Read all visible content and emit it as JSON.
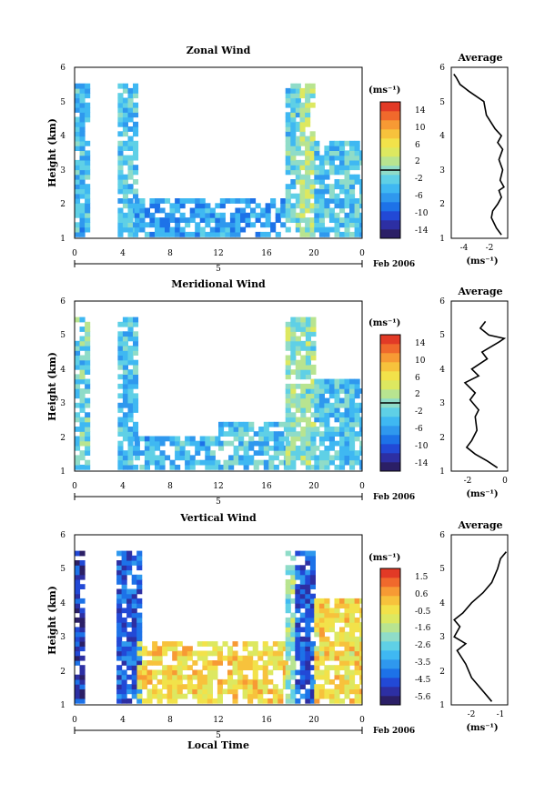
{
  "panels": [
    {
      "title": "Zonal Wind",
      "ylabel": "Height (km)",
      "yticks": [
        "1",
        "2",
        "3",
        "4",
        "5",
        "6"
      ],
      "xticks": [
        "0",
        "4",
        "8",
        "12",
        "16",
        "20",
        "0"
      ],
      "day_label": "5",
      "date_label": "Feb 2006",
      "colorbar": {
        "unit": "(ms⁻¹)",
        "labels": [
          "14",
          "10",
          "6",
          "2",
          "-2",
          "-6",
          "-10",
          "-14"
        ],
        "min": -16,
        "max": 16
      },
      "avg": {
        "title": "Average",
        "yticks": [
          "1",
          "2",
          "3",
          "4",
          "5",
          "6"
        ],
        "xticks": [
          "-4",
          "-2"
        ],
        "xlabel": "(ms⁻¹)",
        "xlim": [
          -5,
          -0.5
        ]
      }
    },
    {
      "title": "Meridional Wind",
      "ylabel": "Height (km)",
      "yticks": [
        "1",
        "2",
        "3",
        "4",
        "5",
        "6"
      ],
      "xticks": [
        "0",
        "4",
        "8",
        "12",
        "16",
        "20",
        "0"
      ],
      "day_label": "5",
      "date_label": "Feb 2006",
      "colorbar": {
        "unit": "(ms⁻¹)",
        "labels": [
          "14",
          "10",
          "6",
          "2",
          "-2",
          "-6",
          "-10",
          "-14"
        ],
        "min": -16,
        "max": 16
      },
      "avg": {
        "title": "Average",
        "yticks": [
          "1",
          "2",
          "3",
          "4",
          "5",
          "6"
        ],
        "xticks": [
          "-2",
          "0"
        ],
        "xlabel": "(ms⁻¹)",
        "xlim": [
          -3,
          0.3
        ]
      }
    },
    {
      "title": "Vertical Wind",
      "ylabel": "Height (km)",
      "yticks": [
        "1",
        "2",
        "3",
        "4",
        "5",
        "6"
      ],
      "xticks": [
        "0",
        "4",
        "8",
        "12",
        "16",
        "20",
        "0"
      ],
      "day_label": "5",
      "date_label": "Feb 2006",
      "xlabel": "Local Time",
      "colorbar": {
        "unit": "(ms⁻¹)",
        "labels": [
          "1.5",
          "0.6",
          "-0.5",
          "-1.6",
          "-2.6",
          "-3.5",
          "-4.5",
          "-5.6"
        ],
        "min": -6.1,
        "max": 2.0
      },
      "avg": {
        "title": "Average",
        "yticks": [
          "1",
          "2",
          "3",
          "4",
          "5",
          "6"
        ],
        "xticks": [
          "-2",
          "-1"
        ],
        "xlabel": "(ms⁻¹)",
        "xlim": [
          -2.7,
          -0.75
        ]
      }
    }
  ],
  "chart_data": [
    {
      "type": "heatmap",
      "title": "Zonal Wind",
      "xlabel": "",
      "ylabel": "Height (km)",
      "x_unit": "local time (h)",
      "xlim": [
        0,
        24
      ],
      "ylim": [
        1,
        6
      ],
      "colorbar_range": [
        -16,
        16
      ],
      "observation_blocks": [
        {
          "t_start": 0,
          "t_end": 1.2,
          "z_top": 5.4,
          "mean_value": -4
        },
        {
          "t_start": 3.6,
          "t_end": 5.0,
          "z_top": 5.4,
          "mean_value": -3
        },
        {
          "t_start": 5.0,
          "t_end": 17.6,
          "z_top": 2.1,
          "mean_value": -6
        },
        {
          "t_start": 17.6,
          "t_end": 18.8,
          "z_top": 5.4,
          "mean_value": -2
        },
        {
          "t_start": 18.8,
          "t_end": 20.0,
          "z_top": 5.4,
          "mean_value": 2
        },
        {
          "t_start": 20.0,
          "t_end": 24,
          "z_top": 3.8,
          "mean_value": -3
        }
      ]
    },
    {
      "type": "heatmap",
      "title": "Meridional Wind",
      "xlabel": "",
      "ylabel": "Height (km)",
      "x_unit": "local time (h)",
      "xlim": [
        0,
        24
      ],
      "ylim": [
        1,
        6
      ],
      "colorbar_range": [
        -16,
        16
      ],
      "observation_blocks": [
        {
          "t_start": 0,
          "t_end": 1.2,
          "z_top": 5.4,
          "mean_value": -2
        },
        {
          "t_start": 3.6,
          "t_end": 5.0,
          "z_top": 5.4,
          "mean_value": -4
        },
        {
          "t_start": 5.0,
          "t_end": 12.0,
          "z_top": 1.9,
          "mean_value": -4
        },
        {
          "t_start": 12.0,
          "t_end": 17.6,
          "z_top": 2.4,
          "mean_value": -3
        },
        {
          "t_start": 17.6,
          "t_end": 20.0,
          "z_top": 5.4,
          "mean_value": 0
        },
        {
          "t_start": 20.0,
          "t_end": 24,
          "z_top": 3.6,
          "mean_value": -3
        }
      ]
    },
    {
      "type": "heatmap",
      "title": "Vertical Wind",
      "xlabel": "Local Time",
      "ylabel": "Height (km)",
      "x_unit": "local time (h)",
      "xlim": [
        0,
        24
      ],
      "ylim": [
        1,
        6
      ],
      "colorbar_range": [
        -6.1,
        2.0
      ],
      "observation_blocks": [
        {
          "t_start": 0,
          "t_end": 0.8,
          "z_top": 5.5,
          "mean_value": -5.0
        },
        {
          "t_start": 3.5,
          "t_end": 5.2,
          "z_top": 5.5,
          "mean_value": -4.5
        },
        {
          "t_start": 5.2,
          "t_end": 17.6,
          "z_top": 2.8,
          "mean_value": -0.3
        },
        {
          "t_start": 17.6,
          "t_end": 18.4,
          "z_top": 5.5,
          "mean_value": -2.0
        },
        {
          "t_start": 18.4,
          "t_end": 20.0,
          "z_top": 5.5,
          "mean_value": -4.5
        },
        {
          "t_start": 20.0,
          "t_end": 24,
          "z_top": 4.0,
          "mean_value": -0.4
        }
      ]
    },
    {
      "type": "line",
      "title": "Average",
      "xlabel": "(ms⁻¹)",
      "ylabel": "",
      "xlim": [
        -5,
        -0.5
      ],
      "ylim": [
        1,
        6
      ],
      "series": [
        {
          "points": [
            [
              -1.0,
              1.1
            ],
            [
              -1.4,
              1.3
            ],
            [
              -1.8,
              1.6
            ],
            [
              -1.7,
              1.8
            ],
            [
              -1.3,
              2.0
            ],
            [
              -1.0,
              2.2
            ],
            [
              -1.2,
              2.4
            ],
            [
              -0.8,
              2.5
            ],
            [
              -1.1,
              2.7
            ],
            [
              -0.9,
              3.0
            ],
            [
              -1.2,
              3.3
            ],
            [
              -0.9,
              3.6
            ],
            [
              -1.3,
              3.8
            ],
            [
              -1.0,
              4.0
            ],
            [
              -1.5,
              4.2
            ],
            [
              -2.2,
              4.6
            ],
            [
              -2.4,
              5.0
            ],
            [
              -3.6,
              5.3
            ],
            [
              -4.3,
              5.5
            ],
            [
              -4.6,
              5.7
            ],
            [
              -4.8,
              5.8
            ]
          ]
        }
      ]
    },
    {
      "type": "line",
      "title": "Average",
      "xlabel": "(ms⁻¹)",
      "ylabel": "",
      "xlim": [
        -3,
        0.3
      ],
      "ylim": [
        1,
        6
      ],
      "series": [
        {
          "points": [
            [
              -0.3,
              1.1
            ],
            [
              -0.9,
              1.3
            ],
            [
              -1.6,
              1.5
            ],
            [
              -2.1,
              1.7
            ],
            [
              -1.8,
              1.9
            ],
            [
              -1.5,
              2.2
            ],
            [
              -1.6,
              2.6
            ],
            [
              -1.4,
              2.8
            ],
            [
              -1.9,
              3.1
            ],
            [
              -1.6,
              3.3
            ],
            [
              -2.2,
              3.6
            ],
            [
              -1.4,
              3.8
            ],
            [
              -1.8,
              4.0
            ],
            [
              -0.9,
              4.3
            ],
            [
              -1.2,
              4.5
            ],
            [
              -0.2,
              4.8
            ],
            [
              0.1,
              4.9
            ],
            [
              -0.8,
              5.0
            ],
            [
              -1.3,
              5.2
            ],
            [
              -1.0,
              5.4
            ]
          ]
        }
      ]
    },
    {
      "type": "line",
      "title": "Average",
      "xlabel": "(ms⁻¹)",
      "ylabel": "",
      "xlim": [
        -2.7,
        -0.75
      ],
      "ylim": [
        1,
        6
      ],
      "series": [
        {
          "points": [
            [
              -1.3,
              1.1
            ],
            [
              -1.5,
              1.3
            ],
            [
              -1.7,
              1.5
            ],
            [
              -2.0,
              1.8
            ],
            [
              -2.2,
              2.2
            ],
            [
              -2.5,
              2.6
            ],
            [
              -2.2,
              2.8
            ],
            [
              -2.6,
              3.0
            ],
            [
              -2.4,
              3.3
            ],
            [
              -2.6,
              3.5
            ],
            [
              -2.3,
              3.7
            ],
            [
              -2.0,
              4.0
            ],
            [
              -1.6,
              4.3
            ],
            [
              -1.3,
              4.6
            ],
            [
              -1.1,
              5.0
            ],
            [
              -1.0,
              5.3
            ],
            [
              -0.8,
              5.5
            ]
          ]
        }
      ]
    }
  ]
}
